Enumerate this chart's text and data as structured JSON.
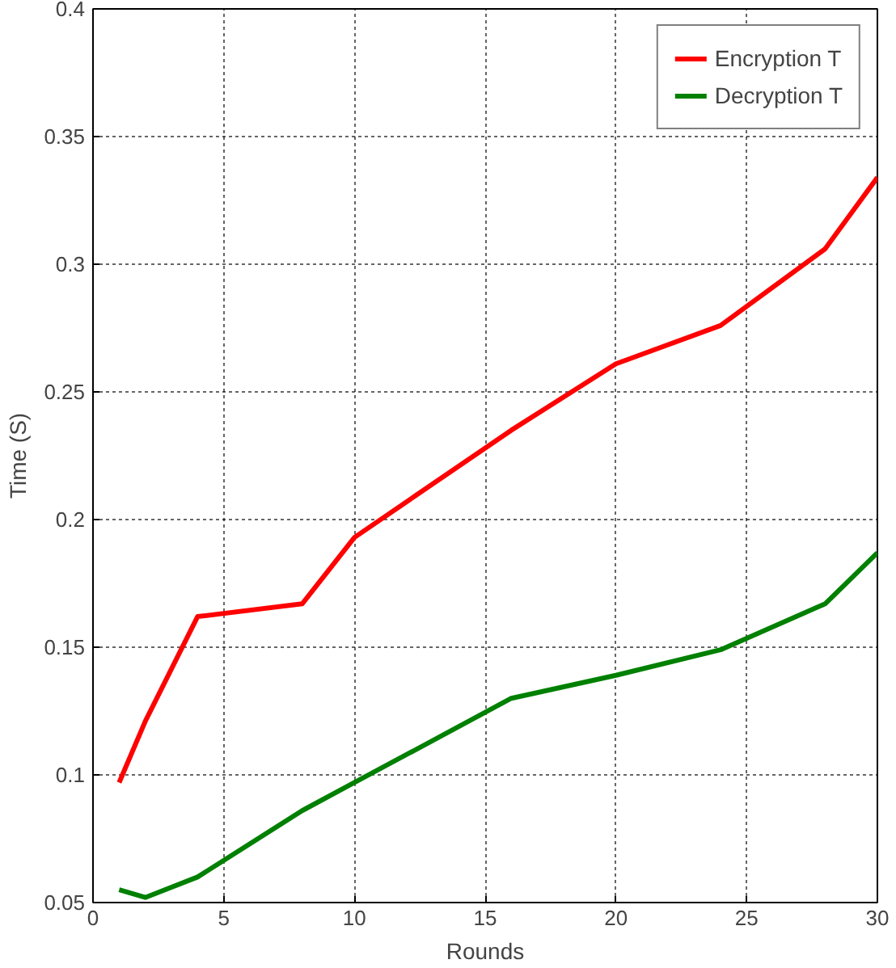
{
  "chart_data": {
    "type": "line",
    "xlabel": "Rounds",
    "ylabel": "Time (S)",
    "xlim": [
      0,
      30
    ],
    "ylim": [
      0.05,
      0.4
    ],
    "xticks": [
      0,
      5,
      10,
      15,
      20,
      25,
      30
    ],
    "yticks": [
      0.05,
      0.1,
      0.15,
      0.2,
      0.25,
      0.3,
      0.35,
      0.4
    ],
    "grid": true,
    "legend": "top right",
    "line_style": "solid",
    "series": [
      {
        "name": "Encryption T",
        "color": "#ff0000",
        "x": [
          1,
          2,
          4,
          8,
          10,
          16,
          20,
          24,
          28,
          30
        ],
        "values": [
          0.097,
          0.121,
          0.162,
          0.167,
          0.193,
          0.235,
          0.261,
          0.276,
          0.306,
          0.334
        ]
      },
      {
        "name": "Decryption T",
        "color": "#008000",
        "x": [
          1,
          2,
          4,
          8,
          10,
          16,
          20,
          24,
          28,
          30
        ],
        "values": [
          0.055,
          0.052,
          0.06,
          0.086,
          0.097,
          0.13,
          0.139,
          0.149,
          0.167,
          0.187
        ]
      }
    ]
  }
}
